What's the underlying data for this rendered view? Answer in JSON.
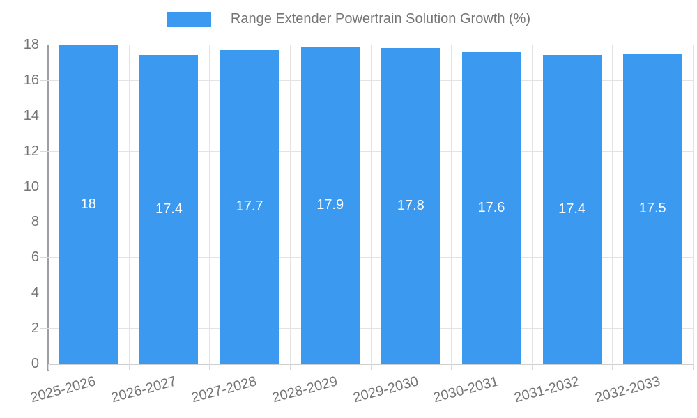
{
  "legend": {
    "label": "Range Extender Powertrain Solution Growth (%)",
    "swatch": "blue-square"
  },
  "chart_data": {
    "type": "bar",
    "title": "Range Extender Powertrain Solution Growth (%)",
    "categories": [
      "2025-2026",
      "2026-2027",
      "2027-2028",
      "2028-2029",
      "2029-2030",
      "2030-2031",
      "2031-2032",
      "2032-2033"
    ],
    "values": [
      18,
      17.4,
      17.7,
      17.9,
      17.8,
      17.6,
      17.4,
      17.5
    ],
    "value_labels": [
      "18",
      "17.4",
      "17.7",
      "17.9",
      "17.8",
      "17.6",
      "17.4",
      "17.5"
    ],
    "xlabel": "",
    "ylabel": "",
    "ylim": [
      0,
      18
    ],
    "ytick_step": 2,
    "yticks": [
      0,
      2,
      4,
      6,
      8,
      10,
      12,
      14,
      16,
      18
    ],
    "grid": true,
    "legend_position": "top",
    "bar_labels_inside": true,
    "x_labels_rotation_deg": -15
  },
  "colors": {
    "bar": "#3b99f0",
    "bar_label": "#ffffff",
    "grid": "#e3e3e3",
    "baseline": "#cfcfcf",
    "axis": "#9e9e9e",
    "tick": "#d9d9d9",
    "text": "#757575",
    "background": "#ffffff"
  }
}
